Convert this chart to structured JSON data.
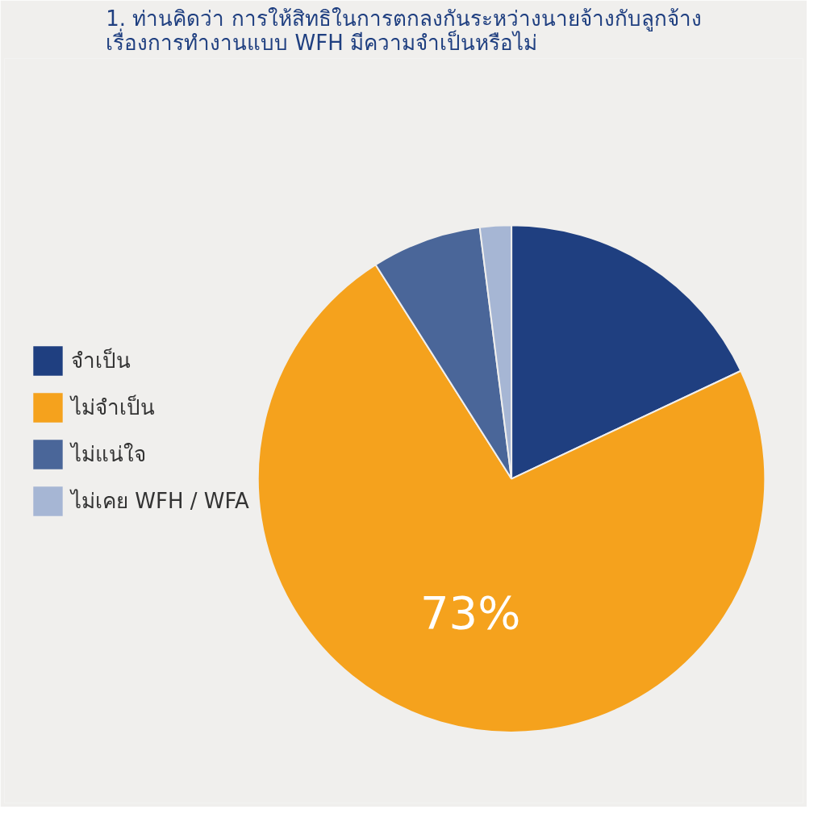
{
  "chart_data": {
    "type": "pie",
    "title": "1. ท่านคิดว่า การให้สิทธิในการตกลงกันระหว่างนายจ้างกับลูกจ้าง\nเรื่องการทำงานแบบ WFH มีความจำเป็นหรือไม่",
    "categories": [
      "จำเป็น",
      "ไม่จำเป็น",
      "ไม่แน่ใจ",
      "ไม่เคย WFH / WFA"
    ],
    "values": [
      18,
      73,
      7,
      2
    ],
    "colors": [
      "#1f3f80",
      "#f5a21d",
      "#4a6699",
      "#a6b6d4"
    ],
    "value_labels": [
      null,
      "73%",
      null,
      null
    ],
    "legend": "left"
  }
}
